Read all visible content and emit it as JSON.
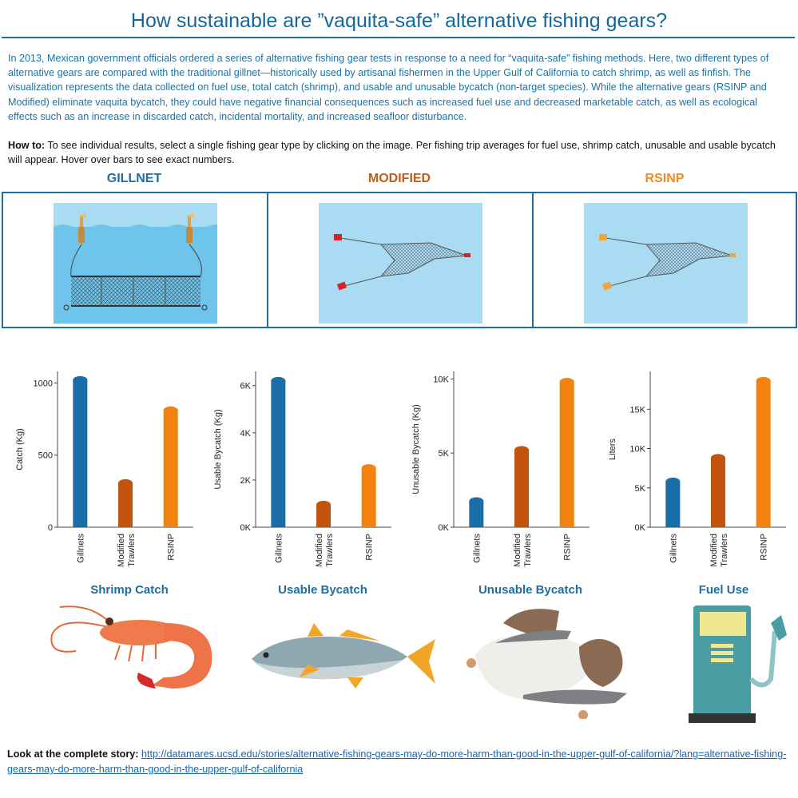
{
  "title": "How sustainable are ”vaquita-safe” alternative fishing gears?",
  "intro": "In 2013, Mexican government officials ordered a series of alternative fishing gear tests in response to a need for “vaquita-safe” fishing methods. Here, two different types of alternative gears are compared with the traditional gillnet—historically used by artisanal fishermen in the Upper Gulf of California to catch shrimp, as well as finfish. The visualization represents the data collected on fuel use, total catch (shrimp), and usable and unusable bycatch (non-target species). While the alternative gears (RSINP and Modified) eliminate vaquita bycatch, they could have negative financial consequences such as increased fuel use and decreased marketable catch, as well as ecological effects such as an increase in discarded catch, incidental mortality, and increased seafloor disturbance.",
  "howto": {
    "label": "How to:",
    "text": " To see individual results, select a single fishing gear type by clicking on the image. Per fishing trip averages for fuel use, shrimp catch, unusable and usable bycatch will appear. Hover over bars to see exact numbers."
  },
  "gears": [
    {
      "label": "GILLNET",
      "color": "#1f6e9e",
      "icon": "gillnet-illustration"
    },
    {
      "label": "MODIFIED",
      "color": "#c75a12",
      "icon": "modified-trawl-illustration"
    },
    {
      "label": "RSINP",
      "color": "#f28a1e",
      "icon": "rsinp-trawl-illustration"
    }
  ],
  "colors": {
    "gillnets": "#1a6ea8",
    "modified": "#c2550e",
    "rsinp": "#f5820f",
    "accent": "#1f6e9e"
  },
  "chart_data": [
    {
      "type": "bar",
      "categories": [
        "Gillnets",
        "Modified Trawlers",
        "RSINP"
      ],
      "values": [
        1020,
        305,
        810
      ],
      "ylabel": "Catch (Kg)",
      "ylim": [
        0,
        1080
      ],
      "yticks": [
        0,
        500,
        1000
      ],
      "ytick_labels": [
        "0",
        "500",
        "1000"
      ],
      "category_title": "Shrimp Catch"
    },
    {
      "type": "bar",
      "categories": [
        "Gillnets",
        "Modified Trawlers",
        "RSINP"
      ],
      "values": [
        6200,
        950,
        2500
      ],
      "ylabel": "Usable Bycatch (Kg)",
      "ylim": [
        0,
        6600
      ],
      "yticks": [
        0,
        2000,
        4000,
        6000
      ],
      "ytick_labels": [
        "0K",
        "2K",
        "4K",
        "6K"
      ],
      "category_title": "Usable Bycatch"
    },
    {
      "type": "bar",
      "categories": [
        "Gillnets",
        "Modified Trawlers",
        "RSINP"
      ],
      "values": [
        1750,
        5200,
        9800
      ],
      "ylabel": "Unusable Bycatch (Kg)",
      "ylim": [
        0,
        10500
      ],
      "yticks": [
        0,
        5000,
        10000
      ],
      "ytick_labels": [
        "0K",
        "5K",
        "10K"
      ],
      "category_title": "Unusable Bycatch"
    },
    {
      "type": "bar",
      "categories": [
        "Gillnets",
        "Modified Trawlers",
        "RSINP"
      ],
      "values": [
        5800,
        8800,
        18600
      ],
      "ylabel": "Liters",
      "ylim": [
        0,
        19800
      ],
      "yticks": [
        0,
        5000,
        10000,
        15000
      ],
      "ytick_labels": [
        "0K",
        "5K",
        "10K",
        "15K"
      ],
      "category_title": "Fuel Use"
    }
  ],
  "illustrations": [
    "shrimp-illustration",
    "fish-illustration",
    "bycatch-pile-illustration",
    "fuel-pump-illustration"
  ],
  "story": {
    "label": "Look at the complete story:",
    "link": "http://datamares.ucsd.edu/stories/alternative-fishing-gears-may-do-more-harm-than-good-in-the-upper-gulf-of-california/?lang=alternative-fishing-gears-may-do-more-harm-than-good-in-the-upper-gulf-of-california"
  }
}
